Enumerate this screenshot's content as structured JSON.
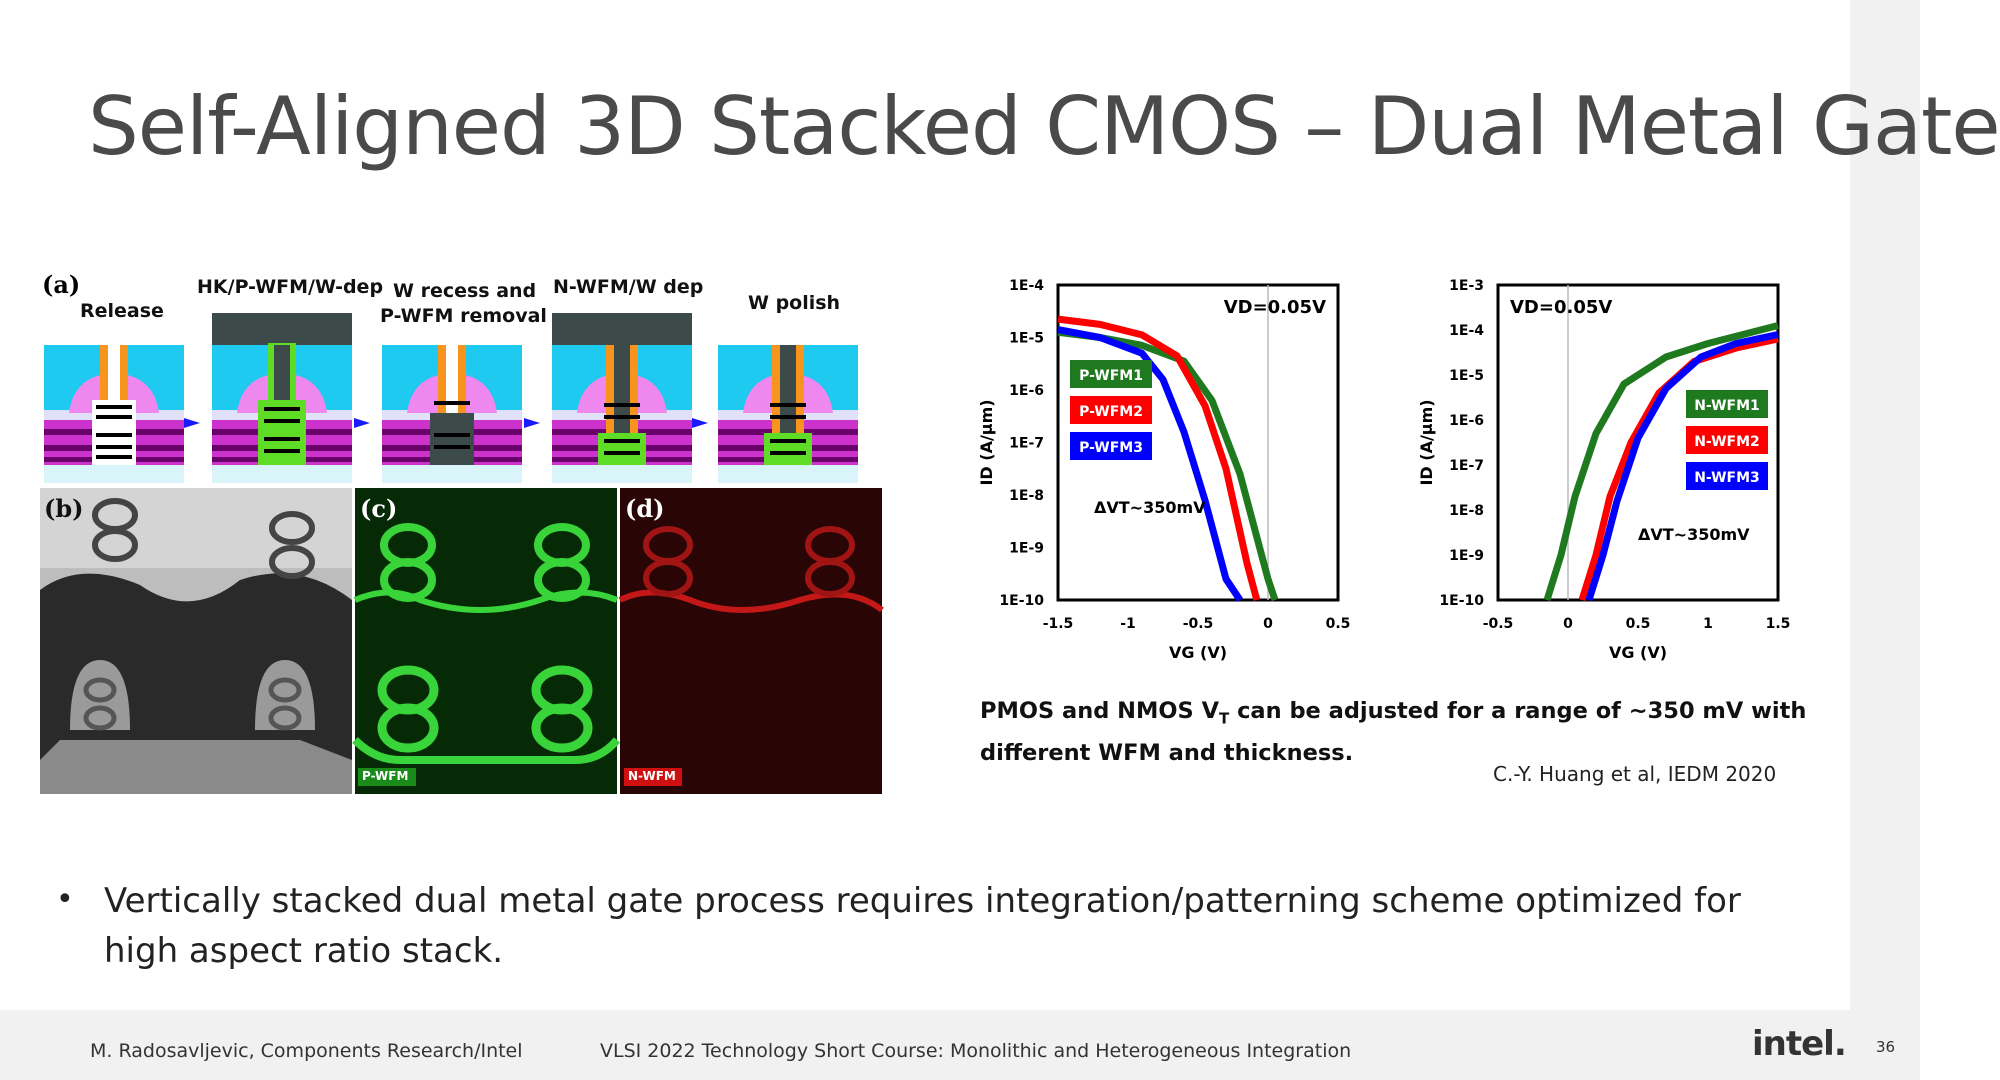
{
  "slide": {
    "title": "Self-Aligned 3D Stacked CMOS – Dual Metal Gate",
    "page_number": "36",
    "footer": {
      "author": "M. Radosavljevic, Components Research/Intel",
      "course": "VLSI 2022 Technology Short Course: Monolithic and Heterogeneous Integration",
      "logo": "intel."
    },
    "bullet": "Vertically stacked dual metal gate process requires integration/patterning scheme optimized for high aspect ratio stack.",
    "caption": {
      "line1": "PMOS and NMOS V",
      "sub": "T",
      "line2": " can be adjusted for a range of ~350 mV with different WFM and thickness."
    },
    "citation": "C.-Y. Huang et al, IEDM 2020"
  },
  "figure": {
    "panel_a": {
      "letter": "(a)",
      "steps": [
        "Release",
        "HK/P-WFM/W-dep",
        "W recess and",
        "P-WFM removal",
        "N-WFM/W dep",
        "W polish"
      ]
    },
    "panel_b": {
      "letter": "(b)"
    },
    "panel_c": {
      "letter": "(c)",
      "tag": "P-WFM"
    },
    "panel_d": {
      "letter": "(d)",
      "tag": "N-WFM"
    }
  },
  "chart_data": [
    {
      "type": "line",
      "title": "",
      "annotation": "VD=0.05V",
      "delta_label": "ΔVT~350mV",
      "xlabel": "VG (V)",
      "ylabel": "ID (A/µm)",
      "xlim": [
        -1.5,
        0.5
      ],
      "xticks": [
        "-1.5",
        "-1",
        "-0.5",
        "0",
        "0.5"
      ],
      "yticks": [
        "1E-4",
        "1E-5",
        "1E-6",
        "1E-7",
        "1E-8",
        "1E-9",
        "1E-10"
      ],
      "ylim_log": [
        -10,
        -4
      ],
      "legend_placement": "left",
      "series": [
        {
          "name": "P-WFM1",
          "color": "#1f7a1f",
          "x": [
            -1.5,
            -1.2,
            -0.9,
            -0.6,
            -0.4,
            -0.2,
            0.0,
            0.05
          ],
          "y": [
            -4.9,
            -5.0,
            -5.15,
            -5.45,
            -6.2,
            -7.6,
            -9.6,
            -10.0
          ]
        },
        {
          "name": "P-WFM2",
          "color": "#ff0000",
          "x": [
            -1.5,
            -1.2,
            -0.9,
            -0.65,
            -0.45,
            -0.3,
            -0.15,
            -0.08
          ],
          "y": [
            -4.65,
            -4.75,
            -4.95,
            -5.35,
            -6.3,
            -7.5,
            -9.3,
            -10.0
          ]
        },
        {
          "name": "P-WFM3",
          "color": "#0000ff",
          "x": [
            -1.5,
            -1.2,
            -0.9,
            -0.75,
            -0.6,
            -0.45,
            -0.3,
            -0.2
          ],
          "y": [
            -4.85,
            -5.0,
            -5.3,
            -5.8,
            -6.8,
            -8.1,
            -9.6,
            -10.0
          ]
        }
      ]
    },
    {
      "type": "line",
      "title": "",
      "annotation": "VD=0.05V",
      "delta_label": "ΔVT~350mV",
      "xlabel": "VG (V)",
      "ylabel": "ID (A/µm)",
      "xlim": [
        -0.5,
        1.5
      ],
      "xticks": [
        "-0.5",
        "0",
        "0.5",
        "1",
        "1.5"
      ],
      "yticks": [
        "1E-3",
        "1E-4",
        "1E-5",
        "1E-6",
        "1E-7",
        "1E-8",
        "1E-9",
        "1E-10"
      ],
      "ylim_log": [
        -10,
        -3
      ],
      "legend_placement": "right",
      "series": [
        {
          "name": "N-WFM1",
          "color": "#1f7a1f",
          "x": [
            -0.15,
            -0.05,
            0.05,
            0.2,
            0.4,
            0.7,
            1.0,
            1.5
          ],
          "y": [
            -10.0,
            -9.0,
            -7.7,
            -6.3,
            -5.2,
            -4.6,
            -4.3,
            -3.9
          ]
        },
        {
          "name": "N-WFM2",
          "color": "#ff0000",
          "x": [
            0.1,
            0.2,
            0.3,
            0.45,
            0.65,
            0.9,
            1.2,
            1.5
          ],
          "y": [
            -10.0,
            -9.0,
            -7.7,
            -6.5,
            -5.4,
            -4.7,
            -4.4,
            -4.2
          ]
        },
        {
          "name": "N-WFM3",
          "color": "#0000ff",
          "x": [
            0.15,
            0.25,
            0.35,
            0.5,
            0.7,
            0.95,
            1.2,
            1.5
          ],
          "y": [
            -10.0,
            -9.0,
            -7.8,
            -6.4,
            -5.3,
            -4.6,
            -4.3,
            -4.1
          ]
        }
      ]
    }
  ]
}
